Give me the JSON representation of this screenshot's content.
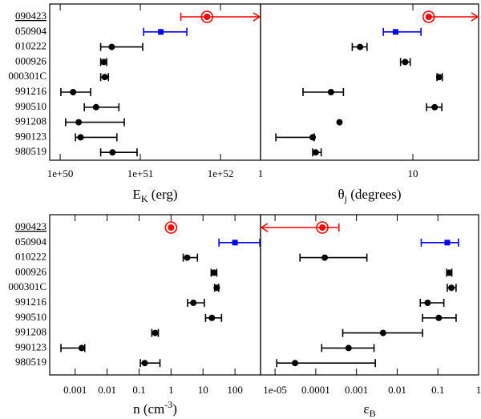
{
  "chart_data": [
    {
      "type": "errorbar",
      "xlabel": [
        "E",
        "K",
        " (erg)"
      ],
      "xlabel_style": "sub",
      "xlog": true,
      "xlim": [
        7.4e+49,
        3.16e+52
      ],
      "xticks": [
        {
          "value": 1e+50,
          "label": "1e+50"
        },
        {
          "value": 1e+51,
          "label": "1e+51"
        },
        {
          "value": 1e+52,
          "label": "1e+52"
        }
      ],
      "categories": [
        "090423",
        "050904",
        "010222",
        "000926",
        "000301C",
        "991216",
        "990510",
        "991208",
        "990123",
        "980519"
      ],
      "colors": [
        "#ff0000",
        "#0000ff",
        "#000000",
        "#000000",
        "#000000",
        "#000000",
        "#000000",
        "#000000",
        "#000000",
        "#000000"
      ],
      "markers": [
        "ringed",
        "square",
        "dot",
        "dot",
        "dot",
        "dot",
        "dot",
        "dot",
        "dot",
        "dot"
      ],
      "arrows": [
        "right",
        null,
        null,
        null,
        null,
        null,
        null,
        null,
        null,
        null
      ],
      "values": [
        6.8e+51,
        1.8e+51,
        4.4e+50,
        3.5e+50,
        3.6e+50,
        1.45e+50,
        2.8e+50,
        1.7e+50,
        1.8e+50,
        4.5e+50
      ],
      "low": [
        3.2e+51,
        1.1e+51,
        3.2e+50,
        3.2e+50,
        3.2e+50,
        1.02e+50,
        2e+50,
        1.17e+50,
        1.55e+50,
        3.2e+50
      ],
      "high": [
        null,
        3.8e+51,
        1.07e+51,
        3.8e+50,
        4e+50,
        2.4e+50,
        5.4e+50,
        6.3e+50,
        5.1e+50,
        9.1e+50
      ]
    },
    {
      "type": "errorbar",
      "xlabel": [
        "θ",
        "j",
        "  (degrees)"
      ],
      "xlabel_style": "sub",
      "xlog": true,
      "xlim": [
        1,
        27
      ],
      "xticks": [
        1,
        10
      ],
      "colors": [
        "#ff0000",
        "#0000ff",
        "#000000",
        "#000000",
        "#000000",
        "#000000",
        "#000000",
        "#000000",
        "#000000",
        "#000000"
      ],
      "markers": [
        "ringed",
        "square",
        "dot",
        "dot",
        "dot",
        "dot",
        "dot",
        "dot",
        "dot",
        "dot"
      ],
      "arrows": [
        "right",
        null,
        null,
        null,
        null,
        null,
        null,
        null,
        null,
        null
      ],
      "values": [
        12.7,
        7.7,
        4.5,
        8.9,
        14.9,
        2.9,
        13.9,
        3.3,
        2.2,
        2.3
      ],
      "low": [
        null,
        6.4,
        4.0,
        8.3,
        14.4,
        1.9,
        12.3,
        null,
        1.26,
        2.2
      ],
      "high": [
        null,
        11.3,
        5.0,
        9.6,
        15.6,
        3.5,
        15.5,
        null,
        2.25,
        2.5
      ]
    },
    {
      "type": "errorbar",
      "xlabel": [
        "n (cm",
        "-3",
        ")"
      ],
      "xlabel_style": "sup",
      "xlog": true,
      "xlim": [
        0.00016,
        631
      ],
      "xticks": [
        0.001,
        0.01,
        0.1,
        1,
        10,
        100
      ],
      "categories": [
        "090423",
        "050904",
        "010222",
        "000926",
        "000301C",
        "991216",
        "990510",
        "991208",
        "990123",
        "980519"
      ],
      "colors": [
        "#ff0000",
        "#0000ff",
        "#000000",
        "#000000",
        "#000000",
        "#000000",
        "#000000",
        "#000000",
        "#000000",
        "#000000"
      ],
      "markers": [
        "ringed",
        "square",
        "dot",
        "dot",
        "dot",
        "dot",
        "dot",
        "dot",
        "dot",
        "dot"
      ],
      "arrows": [
        null,
        null,
        null,
        null,
        null,
        null,
        null,
        null,
        null,
        null
      ],
      "values": [
        1.0,
        100,
        3.2,
        22,
        27,
        5,
        19,
        0.32,
        0.0016,
        0.15
      ],
      "low": [
        null,
        31.6,
        2.4,
        18,
        23,
        3.3,
        12,
        0.25,
        0.00036,
        0.11
      ],
      "high": [
        null,
        600,
        6.7,
        27,
        31,
        11,
        38,
        0.4,
        0.002,
        0.45
      ]
    },
    {
      "type": "errorbar",
      "xlabel": [
        "ε",
        "B"
      ],
      "xlabel_style": "sub",
      "xlog": true,
      "xlim": [
        4.4e-06,
        1
      ],
      "xticks": [
        {
          "value": 1e-05,
          "label": "1e-05"
        },
        0.0001,
        0.001,
        0.01,
        0.1,
        1
      ],
      "colors": [
        "#ff0000",
        "#0000ff",
        "#000000",
        "#000000",
        "#000000",
        "#000000",
        "#000000",
        "#000000",
        "#000000",
        "#000000"
      ],
      "markers": [
        "ringed",
        "square",
        "dot",
        "dot",
        "dot",
        "dot",
        "dot",
        "dot",
        "dot",
        "dot"
      ],
      "arrows": [
        "left",
        null,
        null,
        null,
        null,
        null,
        null,
        null,
        null,
        null
      ],
      "values": [
        0.000145,
        0.17,
        0.000166,
        0.19,
        0.215,
        0.056,
        0.105,
        0.0045,
        0.00064,
        3.1e-05
      ],
      "low": [
        null,
        0.039,
        4.1e-05,
        0.165,
        0.17,
        0.037,
        0.042,
        0.00046,
        0.00014,
        1.1e-05
      ],
      "high": [
        0.00037,
        0.32,
        0.0018,
        0.22,
        0.28,
        0.14,
        0.28,
        0.042,
        0.0027,
        0.0029
      ]
    }
  ]
}
